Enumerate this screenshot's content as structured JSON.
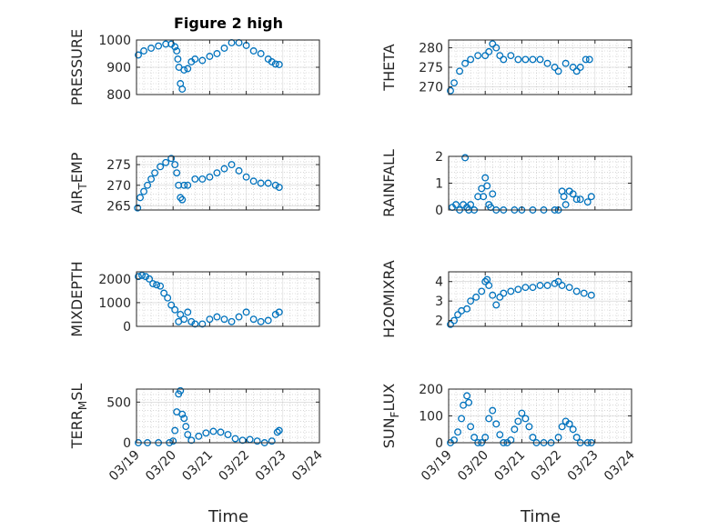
{
  "figure": {
    "title": "Figure 2 high",
    "xlabel": "Time"
  },
  "style": {
    "marker_color": "#0072bd",
    "axis_color": "#262626",
    "grid_color": "#b0b0b0"
  },
  "chart_data": [
    {
      "type": "scatter",
      "ylabel": "PRESSURE",
      "ylim": [
        800,
        1000
      ],
      "yticks": [
        800,
        900,
        1000
      ],
      "xlim": [
        "03/19",
        "03/24"
      ],
      "grid": "minor dotted",
      "x": [
        19.05,
        19.2,
        19.4,
        19.6,
        19.8,
        19.95,
        20.05,
        20.1,
        20.13,
        20.16,
        20.2,
        20.25,
        20.3,
        20.4,
        20.5,
        20.6,
        20.8,
        21.0,
        21.2,
        21.4,
        21.6,
        21.8,
        22.0,
        22.2,
        22.4,
        22.6,
        22.7,
        22.8,
        22.9
      ],
      "y": [
        945,
        960,
        970,
        978,
        985,
        985,
        975,
        960,
        930,
        900,
        840,
        820,
        890,
        895,
        920,
        930,
        925,
        940,
        950,
        970,
        990,
        990,
        980,
        960,
        950,
        930,
        920,
        912,
        910
      ]
    },
    {
      "type": "scatter",
      "ylabel": "THETA",
      "ylim": [
        268,
        282
      ],
      "yticks": [
        270,
        275,
        280
      ],
      "xlim": [
        "03/19",
        "03/24"
      ],
      "grid": "minor dotted",
      "x": [
        19.05,
        19.15,
        19.3,
        19.45,
        19.6,
        19.8,
        20.0,
        20.1,
        20.2,
        20.3,
        20.4,
        20.5,
        20.7,
        20.9,
        21.1,
        21.3,
        21.5,
        21.7,
        21.9,
        22.0,
        22.2,
        22.4,
        22.5,
        22.6,
        22.75,
        22.85
      ],
      "y": [
        269,
        271,
        274,
        276,
        277,
        278,
        278,
        279,
        281,
        280,
        278,
        277,
        278,
        277,
        277,
        277,
        277,
        276,
        275,
        274,
        276,
        275,
        274,
        275,
        277,
        277
      ]
    },
    {
      "type": "scatter",
      "ylabel": "AIR_TEMP",
      "ylim": [
        264,
        277
      ],
      "yticks": [
        265,
        270,
        275
      ],
      "xlim": [
        "03/19",
        "03/24"
      ],
      "grid": "minor dotted",
      "x": [
        19.03,
        19.1,
        19.2,
        19.3,
        19.4,
        19.5,
        19.65,
        19.8,
        19.95,
        20.05,
        20.1,
        20.15,
        20.2,
        20.25,
        20.3,
        20.4,
        20.6,
        20.8,
        21.0,
        21.2,
        21.4,
        21.6,
        21.8,
        22.0,
        22.2,
        22.4,
        22.6,
        22.8,
        22.9
      ],
      "y": [
        264.5,
        267,
        268.5,
        270,
        271.5,
        273,
        274.5,
        275.5,
        276.5,
        275,
        273,
        270,
        267,
        266.5,
        270,
        270,
        271.5,
        271.5,
        272,
        273,
        274,
        275,
        273.5,
        272,
        271,
        270.5,
        270.5,
        270,
        269.5
      ]
    },
    {
      "type": "scatter",
      "ylabel": "RAINFALL",
      "ylim": [
        0,
        2
      ],
      "yticks": [
        0,
        1,
        2
      ],
      "xlim": [
        "03/19",
        "03/24"
      ],
      "grid": "minor dotted",
      "x": [
        19.1,
        19.2,
        19.3,
        19.4,
        19.45,
        19.5,
        19.55,
        19.6,
        19.7,
        19.8,
        19.9,
        19.95,
        20.0,
        20.05,
        20.1,
        20.15,
        20.2,
        20.3,
        20.5,
        20.8,
        21.0,
        21.3,
        21.6,
        21.9,
        22.0,
        22.1,
        22.15,
        22.2,
        22.3,
        22.4,
        22.5,
        22.6,
        22.8,
        22.9
      ],
      "y": [
        0.1,
        0.2,
        0,
        0.2,
        1.95,
        0.1,
        0,
        0.2,
        0,
        0.5,
        0.8,
        0.5,
        1.2,
        0.9,
        0.2,
        0.1,
        0.6,
        0,
        0,
        0,
        0,
        0,
        0,
        0,
        0,
        0.7,
        0.5,
        0.2,
        0.7,
        0.6,
        0.4,
        0.4,
        0.3,
        0.5
      ]
    },
    {
      "type": "scatter",
      "ylabel": "MIXDEPTH",
      "ylim": [
        0,
        2300
      ],
      "yticks": [
        0,
        1000,
        2000
      ],
      "xlim": [
        "03/19",
        "03/24"
      ],
      "grid": "minor dotted",
      "x": [
        19.05,
        19.15,
        19.25,
        19.35,
        19.45,
        19.55,
        19.65,
        19.75,
        19.85,
        19.95,
        20.05,
        20.15,
        20.2,
        20.3,
        20.4,
        20.5,
        20.6,
        20.8,
        21.0,
        21.2,
        21.4,
        21.6,
        21.8,
        22.0,
        22.2,
        22.4,
        22.6,
        22.8,
        22.9
      ],
      "y": [
        2100,
        2150,
        2100,
        2000,
        1800,
        1750,
        1700,
        1400,
        1200,
        900,
        700,
        200,
        500,
        300,
        600,
        200,
        100,
        100,
        300,
        400,
        300,
        200,
        400,
        600,
        300,
        200,
        250,
        500,
        600
      ]
    },
    {
      "type": "scatter",
      "ylabel": "H2OMIXRA",
      "ylim": [
        1.7,
        4.5
      ],
      "yticks": [
        2,
        3,
        4
      ],
      "xlim": [
        "03/19",
        "03/24"
      ],
      "grid": "minor dotted",
      "x": [
        19.05,
        19.15,
        19.25,
        19.35,
        19.5,
        19.6,
        19.75,
        19.9,
        20.0,
        20.05,
        20.1,
        20.2,
        20.3,
        20.4,
        20.5,
        20.7,
        20.9,
        21.1,
        21.3,
        21.5,
        21.7,
        21.9,
        22.0,
        22.1,
        22.3,
        22.5,
        22.7,
        22.9
      ],
      "y": [
        1.8,
        2.0,
        2.3,
        2.5,
        2.6,
        3.0,
        3.2,
        3.5,
        4.0,
        4.1,
        3.8,
        3.3,
        2.8,
        3.2,
        3.4,
        3.5,
        3.6,
        3.7,
        3.7,
        3.8,
        3.8,
        3.9,
        4.0,
        3.8,
        3.7,
        3.5,
        3.4,
        3.3
      ]
    },
    {
      "type": "scatter",
      "ylabel": "TERR_MSL",
      "ylim": [
        0,
        660
      ],
      "yticks": [
        0,
        500
      ],
      "xlim": [
        "03/19",
        "03/24"
      ],
      "grid": "minor dotted",
      "x": [
        19.05,
        19.3,
        19.6,
        19.9,
        20.0,
        20.05,
        20.1,
        20.15,
        20.2,
        20.25,
        20.3,
        20.35,
        20.4,
        20.5,
        20.7,
        20.9,
        21.1,
        21.3,
        21.5,
        21.7,
        21.9,
        22.1,
        22.3,
        22.5,
        22.7,
        22.85,
        22.9
      ],
      "y": [
        0,
        0,
        0,
        0,
        20,
        150,
        380,
        600,
        640,
        350,
        300,
        200,
        100,
        30,
        80,
        120,
        140,
        130,
        100,
        50,
        30,
        40,
        20,
        0,
        20,
        130,
        150
      ]
    },
    {
      "type": "scatter",
      "ylabel": "SUN_FLUX",
      "ylim": [
        0,
        200
      ],
      "yticks": [
        0,
        100,
        200
      ],
      "xlim": [
        "03/19",
        "03/24"
      ],
      "grid": "minor dotted",
      "x": [
        19.05,
        19.15,
        19.25,
        19.35,
        19.4,
        19.5,
        19.55,
        19.6,
        19.7,
        19.8,
        19.9,
        20.0,
        20.1,
        20.2,
        20.3,
        20.4,
        20.5,
        20.6,
        20.7,
        20.8,
        20.9,
        21.0,
        21.1,
        21.2,
        21.3,
        21.4,
        21.6,
        21.8,
        22.0,
        22.1,
        22.2,
        22.3,
        22.4,
        22.5,
        22.6,
        22.8,
        22.9
      ],
      "y": [
        0,
        10,
        40,
        90,
        140,
        175,
        150,
        60,
        20,
        0,
        0,
        20,
        90,
        120,
        70,
        30,
        0,
        0,
        10,
        50,
        80,
        110,
        90,
        60,
        20,
        0,
        0,
        0,
        20,
        60,
        80,
        70,
        50,
        20,
        0,
        0,
        0
      ]
    }
  ],
  "panel_labels": [
    {
      "main": "PRESSURE"
    },
    {
      "main": "THETA"
    },
    {
      "main": "AIR",
      "sub": "T",
      "rest": "EMP"
    },
    {
      "main": "RAINFALL"
    },
    {
      "main": "MIXDEPTH"
    },
    {
      "main": "H2OMIXRA"
    },
    {
      "main": "TERR",
      "sub": "M",
      "rest": "SL"
    },
    {
      "main": "SUN",
      "sub": "F",
      "rest": "LUX"
    }
  ],
  "xtick_labels": [
    "03/19",
    "03/20",
    "03/21",
    "03/22",
    "03/23",
    "03/24"
  ]
}
